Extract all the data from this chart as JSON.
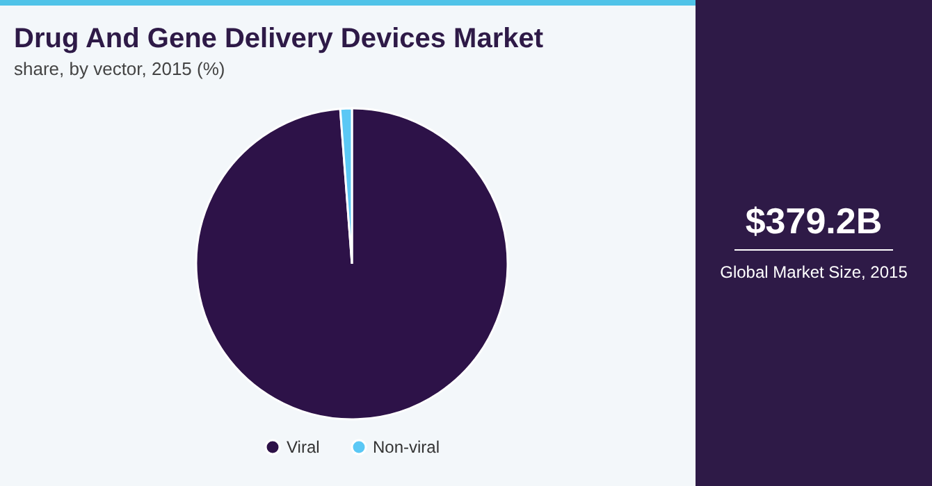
{
  "chart_data": {
    "type": "pie",
    "title": "Drug And Gene Delivery Devices Market",
    "subtitle": "share, by vector, 2015 (%)",
    "categories": [
      "Viral",
      "Non-viral"
    ],
    "values": [
      98.8,
      1.2
    ],
    "colors": [
      "#2d1248",
      "#5bc8f5"
    ],
    "legend": "bottom",
    "annotations": [
      "$379.2B",
      "Global Market Size, 2015"
    ]
  }
}
